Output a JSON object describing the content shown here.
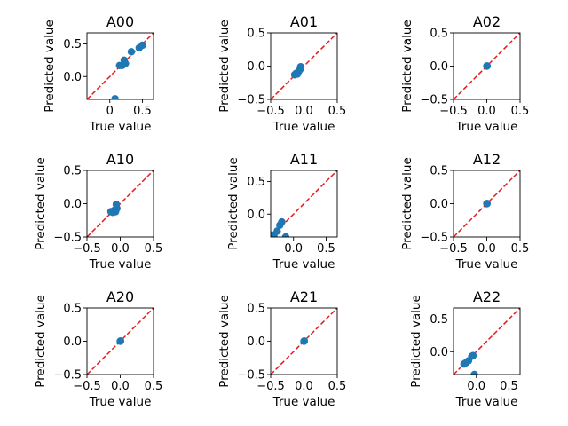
{
  "chart_data": [
    {
      "type": "scatter",
      "title": "A00",
      "xlabel": "True value",
      "ylabel": "Predicted value",
      "xlim": [
        -0.35,
        0.67
      ],
      "ylim": [
        -0.35,
        0.67
      ],
      "xticks": [
        0.0,
        0.5
      ],
      "xtick_labels": [
        "0",
        "0.5"
      ],
      "yticks": [
        0.0,
        0.5
      ],
      "ytick_labels": [
        "0.0",
        "0.5"
      ],
      "reference_line": "y = x",
      "reference_line_color": "#e41a1c",
      "marker_color": "#1f77b4",
      "points": [
        {
          "x": 0.08,
          "y": -0.34
        },
        {
          "x": 0.15,
          "y": 0.17
        },
        {
          "x": 0.19,
          "y": 0.17
        },
        {
          "x": 0.22,
          "y": 0.25
        },
        {
          "x": 0.24,
          "y": 0.2
        },
        {
          "x": 0.33,
          "y": 0.38
        },
        {
          "x": 0.45,
          "y": 0.44
        },
        {
          "x": 0.5,
          "y": 0.48
        }
      ]
    },
    {
      "type": "scatter",
      "title": "A01",
      "xlabel": "True value",
      "ylabel": "Predicted value",
      "xlim": [
        -0.5,
        0.5
      ],
      "ylim": [
        -0.5,
        0.5
      ],
      "xticks": [
        -0.5,
        0.0,
        0.5
      ],
      "xtick_labels": [
        "−0.5",
        "0.0",
        "0.5"
      ],
      "yticks": [
        -0.5,
        0.0,
        0.5
      ],
      "ytick_labels": [
        "−0.5",
        "0.0",
        "0.5"
      ],
      "reference_line": "y = x",
      "reference_line_color": "#e41a1c",
      "marker_color": "#1f77b4",
      "points": [
        {
          "x": -0.14,
          "y": -0.13
        },
        {
          "x": -0.12,
          "y": -0.11
        },
        {
          "x": -0.1,
          "y": -0.12
        },
        {
          "x": -0.08,
          "y": -0.08
        },
        {
          "x": -0.06,
          "y": -0.05
        },
        {
          "x": -0.05,
          "y": -0.01
        }
      ]
    },
    {
      "type": "scatter",
      "title": "A02",
      "xlabel": "True value",
      "ylabel": "Predicted value",
      "xlim": [
        -0.5,
        0.5
      ],
      "ylim": [
        -0.5,
        0.5
      ],
      "xticks": [
        -0.5,
        0.0,
        0.5
      ],
      "xtick_labels": [
        "−0.5",
        "0.0",
        "0.5"
      ],
      "yticks": [
        -0.5,
        0.0,
        0.5
      ],
      "ytick_labels": [
        "−0.5",
        "0.0",
        "0.5"
      ],
      "reference_line": "y = x",
      "reference_line_color": "#e41a1c",
      "marker_color": "#1f77b4",
      "points": [
        {
          "x": 0.0,
          "y": 0.0
        },
        {
          "x": 0.005,
          "y": 0.003
        }
      ]
    },
    {
      "type": "scatter",
      "title": "A10",
      "xlabel": "True value",
      "ylabel": "Predicted value",
      "xlim": [
        -0.5,
        0.5
      ],
      "ylim": [
        -0.5,
        0.5
      ],
      "xticks": [
        -0.5,
        0.0,
        0.5
      ],
      "xtick_labels": [
        "−0.5",
        "0.0",
        "0.5"
      ],
      "yticks": [
        -0.5,
        0.0,
        0.5
      ],
      "ytick_labels": [
        "−0.5",
        "0.0",
        "0.5"
      ],
      "reference_line": "y = x",
      "reference_line_color": "#e41a1c",
      "marker_color": "#1f77b4",
      "points": [
        {
          "x": -0.14,
          "y": -0.12
        },
        {
          "x": -0.11,
          "y": -0.13
        },
        {
          "x": -0.09,
          "y": -0.1
        },
        {
          "x": -0.07,
          "y": -0.12
        },
        {
          "x": -0.05,
          "y": -0.07
        },
        {
          "x": -0.06,
          "y": -0.01
        }
      ]
    },
    {
      "type": "scatter",
      "title": "A11",
      "xlabel": "True value",
      "ylabel": "Predicted value",
      "xlim": [
        -0.35,
        0.67
      ],
      "ylim": [
        -0.35,
        0.67
      ],
      "xticks": [
        0.0,
        0.5
      ],
      "xtick_labels": [
        "0.0",
        "0.5"
      ],
      "yticks": [
        0.0,
        0.5
      ],
      "ytick_labels": [
        "0.0",
        "0.5"
      ],
      "reference_line": "y = x",
      "reference_line_color": "#e41a1c",
      "marker_color": "#1f77b4",
      "points": [
        {
          "x": -0.34,
          "y": -0.32
        },
        {
          "x": -0.3,
          "y": -0.32
        },
        {
          "x": -0.25,
          "y": -0.26
        },
        {
          "x": -0.21,
          "y": -0.17
        },
        {
          "x": -0.18,
          "y": -0.12
        },
        {
          "x": -0.12,
          "y": -0.35
        }
      ]
    },
    {
      "type": "scatter",
      "title": "A12",
      "xlabel": "True value",
      "ylabel": "Predicted value",
      "xlim": [
        -0.5,
        0.5
      ],
      "ylim": [
        -0.5,
        0.5
      ],
      "xticks": [
        -0.5,
        0.0,
        0.5
      ],
      "xtick_labels": [
        "−0.5",
        "0.0",
        "0.5"
      ],
      "yticks": [
        -0.5,
        0.0,
        0.5
      ],
      "ytick_labels": [
        "−0.5",
        "0.0",
        "0.5"
      ],
      "reference_line": "y = x",
      "reference_line_color": "#e41a1c",
      "marker_color": "#1f77b4",
      "points": [
        {
          "x": 0.0,
          "y": 0.0
        },
        {
          "x": 0.005,
          "y": 0.003
        }
      ]
    },
    {
      "type": "scatter",
      "title": "A20",
      "xlabel": "True value",
      "ylabel": "Predicted value",
      "xlim": [
        -0.5,
        0.5
      ],
      "ylim": [
        -0.5,
        0.5
      ],
      "xticks": [
        -0.5,
        0.0,
        0.5
      ],
      "xtick_labels": [
        "−0.5",
        "0.0",
        "0.5"
      ],
      "yticks": [
        -0.5,
        0.0,
        0.5
      ],
      "ytick_labels": [
        "−0.5",
        "0.0",
        "0.5"
      ],
      "reference_line": "y = x",
      "reference_line_color": "#e41a1c",
      "marker_color": "#1f77b4",
      "points": [
        {
          "x": 0.0,
          "y": 0.0
        },
        {
          "x": 0.005,
          "y": 0.003
        }
      ]
    },
    {
      "type": "scatter",
      "title": "A21",
      "xlabel": "True value",
      "ylabel": "Predicted value",
      "xlim": [
        -0.5,
        0.5
      ],
      "ylim": [
        -0.5,
        0.5
      ],
      "xticks": [
        -0.5,
        0.0,
        0.5
      ],
      "xtick_labels": [
        "−0.5",
        "0.0",
        "0.5"
      ],
      "yticks": [
        -0.5,
        0.0,
        0.5
      ],
      "ytick_labels": [
        "−0.5",
        "0.0",
        "0.5"
      ],
      "reference_line": "y = x",
      "reference_line_color": "#e41a1c",
      "marker_color": "#1f77b4",
      "points": [
        {
          "x": 0.0,
          "y": 0.0
        },
        {
          "x": 0.005,
          "y": 0.003
        }
      ]
    },
    {
      "type": "scatter",
      "title": "A22",
      "xlabel": "True value",
      "ylabel": "Predicted value",
      "xlim": [
        -0.35,
        0.67
      ],
      "ylim": [
        -0.35,
        0.67
      ],
      "xticks": [
        0.0,
        0.5
      ],
      "xtick_labels": [
        "0.0",
        "0.5"
      ],
      "yticks": [
        0.0,
        0.5
      ],
      "ytick_labels": [
        "0.0",
        "0.5"
      ],
      "reference_line": "y = x",
      "reference_line_color": "#e41a1c",
      "marker_color": "#1f77b4",
      "points": [
        {
          "x": -0.19,
          "y": -0.19
        },
        {
          "x": -0.16,
          "y": -0.17
        },
        {
          "x": -0.12,
          "y": -0.14
        },
        {
          "x": -0.07,
          "y": -0.07
        },
        {
          "x": -0.05,
          "y": -0.06
        },
        {
          "x": -0.03,
          "y": -0.35
        }
      ]
    }
  ]
}
